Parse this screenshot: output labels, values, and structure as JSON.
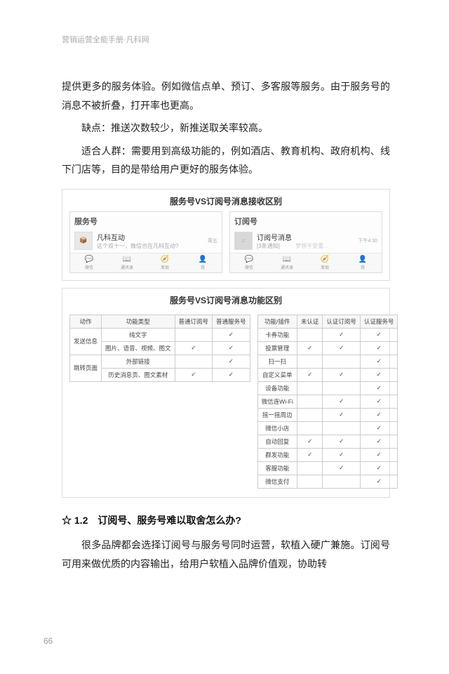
{
  "header": {
    "text": "营销运营全能手册·凡科网"
  },
  "paragraphs": {
    "p1": "提供更多的服务体验。例如微信点单、预订、多客服等服务。由于服务号的消息不被折叠，打开率也更高。",
    "p2": "缺点：推送次数较少，新推送取关率较高。",
    "p3": "适合人群：需要用到高级功能的，例如酒店、教育机构、政府机构、线下门店等，目的是带给用户更好的服务体验。"
  },
  "figure1": {
    "title": "服务号VS订阅号消息接收区别",
    "left": {
      "label": "服务号",
      "msg_title": "凡科互动",
      "msg_sub": "这个双十一，微信也在凡科互动?",
      "time": "周五"
    },
    "right": {
      "label": "订阅号",
      "msg_title": "订阅号消息",
      "msg_sub": "[3条通知]",
      "extra": "梦想不受重…",
      "time": "下午4:30"
    },
    "tabs": [
      {
        "icon": "💬",
        "label": "微信"
      },
      {
        "icon": "📖",
        "label": "通讯录"
      },
      {
        "icon": "🧭",
        "label": "发现"
      },
      {
        "icon": "👤",
        "label": "我"
      }
    ]
  },
  "figure2": {
    "title": "服务号VS订阅号消息功能区别",
    "leftTable": {
      "head": [
        "动作",
        "功能类型",
        "普通订阅号",
        "普通服务号"
      ],
      "groups": [
        {
          "group": "发送信息",
          "rows": [
            {
              "type": "纯文字",
              "sub": "",
              "srv": "✓"
            },
            {
              "type": "图片、语音、视频、图文",
              "sub": "✓",
              "srv": "✓"
            }
          ]
        },
        {
          "group": "跳转页面",
          "rows": [
            {
              "type": "外部链接",
              "sub": "",
              "srv": "✓"
            },
            {
              "type": "历史消息页、图文素材",
              "sub": "✓",
              "srv": "✓"
            }
          ]
        }
      ]
    },
    "rightTable": {
      "head": [
        "功能/插件",
        "未认证",
        "认证订阅号",
        "认证服务号"
      ],
      "rows": [
        {
          "name": "卡券功能",
          "a": "",
          "b": "✓",
          "c": "✓"
        },
        {
          "name": "投票管理",
          "a": "✓",
          "b": "✓",
          "c": "✓"
        },
        {
          "name": "扫一扫",
          "a": "",
          "b": "",
          "c": "✓"
        },
        {
          "name": "自定义菜单",
          "a": "✓",
          "b": "✓",
          "c": "✓"
        },
        {
          "name": "设备功能",
          "a": "",
          "b": "",
          "c": "✓"
        },
        {
          "name": "微信连Wi-Fi",
          "a": "",
          "b": "✓",
          "c": "✓"
        },
        {
          "name": "摇一摇周边",
          "a": "",
          "b": "✓",
          "c": "✓"
        },
        {
          "name": "微信小店",
          "a": "",
          "b": "",
          "c": "✓"
        },
        {
          "name": "自动回复",
          "a": "✓",
          "b": "✓",
          "c": "✓"
        },
        {
          "name": "群发功能",
          "a": "✓",
          "b": "✓",
          "c": "✓"
        },
        {
          "name": "客服功能",
          "a": "",
          "b": "✓",
          "c": "✓"
        },
        {
          "name": "微信支付",
          "a": "",
          "b": "",
          "c": "✓"
        }
      ]
    }
  },
  "section": {
    "heading": "☆ 1.2　订阅号、服务号难以取舍怎么办?",
    "p4": "很多品牌都会选择订阅号与服务号同时运营，软植入硬广兼施。订阅号可用来做优质的内容输出，给用户软植入品牌价值观，协助转"
  },
  "page_number": "66",
  "colors": {
    "text": "#222222",
    "muted": "#aaaaaa",
    "border": "#dddddd",
    "tab_bg": "#f8f8f8"
  }
}
